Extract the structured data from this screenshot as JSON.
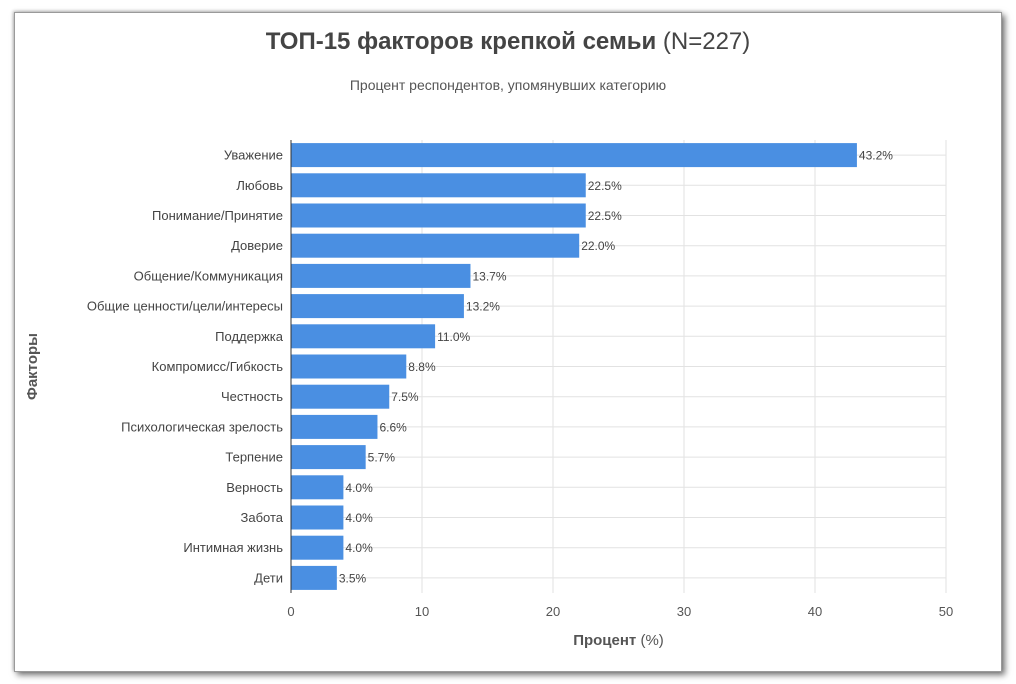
{
  "chart_data": {
    "type": "bar",
    "orientation": "horizontal",
    "title_bold": "ТОП-15 факторов крепкой семьи",
    "title_rest": "(N=227)",
    "subtitle": "Процент респондентов, упомянувших категорию",
    "xlabel_bold": "Процент",
    "xlabel_rest": "(%)",
    "ylabel": "Факторы",
    "categories": [
      "Уважение",
      "Любовь",
      "Понимание/Принятие",
      "Доверие",
      "Общение/Коммуникация",
      "Общие ценности/цели/интересы",
      "Поддержка",
      "Компромисс/Гибкость",
      "Честность",
      "Психологическая зрелость",
      "Терпение",
      "Верность",
      "Забота",
      "Интимная жизнь",
      "Дети"
    ],
    "values": [
      43.2,
      22.5,
      22.5,
      22.0,
      13.7,
      13.2,
      11.0,
      8.8,
      7.5,
      6.6,
      5.7,
      4.0,
      4.0,
      4.0,
      3.5
    ],
    "data_labels": [
      "43.2%",
      "22.5%",
      "22.5%",
      "22.0%",
      "13.7%",
      "13.2%",
      "11.0%",
      "8.8%",
      "7.5%",
      "6.6%",
      "5.7%",
      "4.0%",
      "4.0%",
      "4.0%",
      "3.5%"
    ],
    "xlim": [
      0,
      50
    ],
    "xticks": [
      0,
      10,
      20,
      30,
      40,
      50
    ],
    "grid": true,
    "bar_color": "#4a8fe2",
    "grid_color": "#e2e2e2"
  }
}
